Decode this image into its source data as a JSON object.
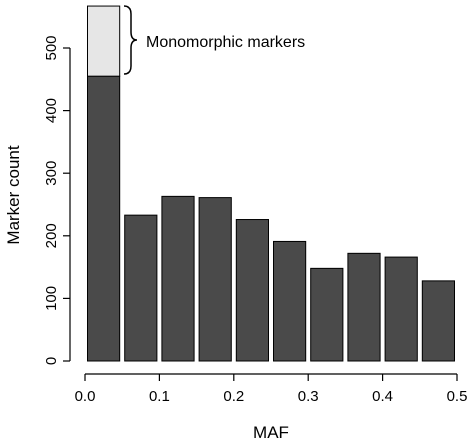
{
  "chart_data": {
    "type": "bar",
    "title": "",
    "xlabel": "MAF",
    "ylabel": "Marker count",
    "xlim": [
      0.0,
      0.5
    ],
    "ylim": [
      0,
      500
    ],
    "x_ticks": [
      "0.0",
      "0.1",
      "0.2",
      "0.3",
      "0.4",
      "0.5"
    ],
    "y_ticks": [
      "0",
      "100",
      "200",
      "300",
      "400",
      "500"
    ],
    "grid": false,
    "bins": [
      {
        "x_start": 0.0,
        "x_end": 0.05,
        "value": 455
      },
      {
        "x_start": 0.05,
        "x_end": 0.1,
        "value": 233
      },
      {
        "x_start": 0.1,
        "x_end": 0.15,
        "value": 263
      },
      {
        "x_start": 0.15,
        "x_end": 0.2,
        "value": 261
      },
      {
        "x_start": 0.2,
        "x_end": 0.25,
        "value": 226
      },
      {
        "x_start": 0.25,
        "x_end": 0.3,
        "value": 191
      },
      {
        "x_start": 0.3,
        "x_end": 0.35,
        "value": 148
      },
      {
        "x_start": 0.35,
        "x_end": 0.4,
        "value": 172
      },
      {
        "x_start": 0.4,
        "x_end": 0.45,
        "value": 166
      },
      {
        "x_start": 0.45,
        "x_end": 0.5,
        "value": 128
      }
    ],
    "stacked_segment": {
      "x_start": 0.0,
      "x_end": 0.05,
      "base": 455,
      "top": 567,
      "value": 112
    },
    "annotation": "Monomorphic markers",
    "colors": {
      "bar": "#4a4a4a",
      "stacked": "#e6e6e6",
      "edge": "#000000"
    }
  }
}
